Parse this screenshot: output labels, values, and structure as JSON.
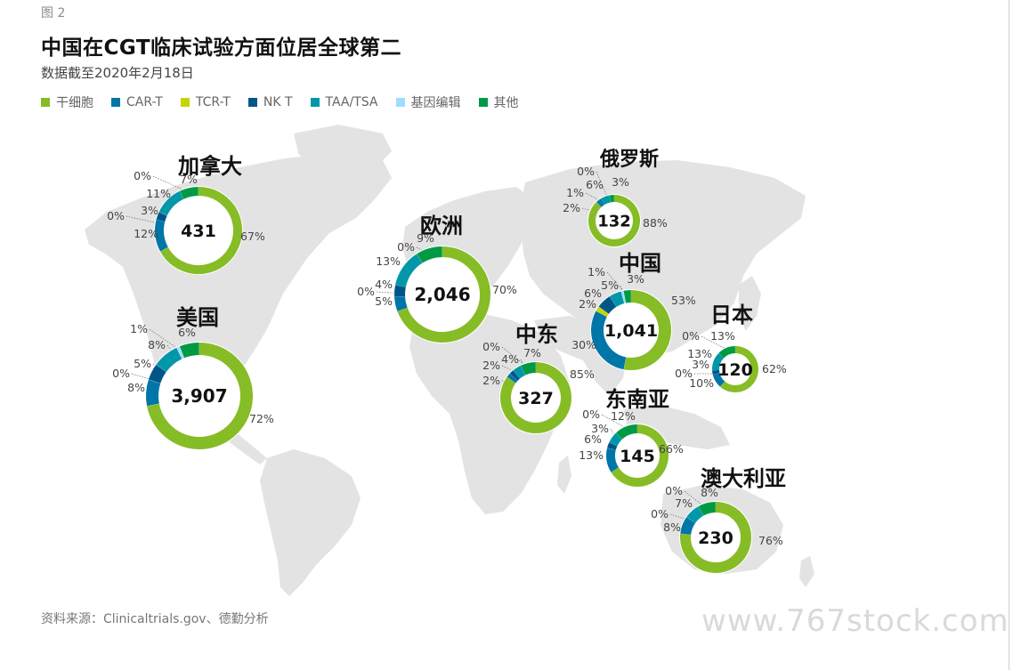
{
  "figure_label": "图 2",
  "title": "中国在CGT临床试验方面位居全球第二",
  "subtitle": "数据截至2020年2月18日",
  "legend": [
    {
      "label": "干细胞",
      "color": "#86bc25"
    },
    {
      "label": "CAR-T",
      "color": "#0076a8"
    },
    {
      "label": "TCR-T",
      "color": "#c4d600"
    },
    {
      "label": "NK T",
      "color": "#005587"
    },
    {
      "label": "TAA/TSA",
      "color": "#0097a9"
    },
    {
      "label": "基因编辑",
      "color": "#a0dcff"
    },
    {
      "label": "其他",
      "color": "#009a44"
    }
  ],
  "source": "资料来源：Clinicaltrials.gov、德勤分析",
  "watermark": "www.767stock.com",
  "chart_data": {
    "type": "pie",
    "variant": "donut-on-map",
    "categories": [
      "干细胞",
      "CAR-T",
      "TCR-T",
      "NK T",
      "TAA/TSA",
      "基因编辑",
      "其他"
    ],
    "regions": [
      {
        "name": "加拿大",
        "total": "431",
        "shares": [
          67,
          12,
          0,
          3,
          11,
          0,
          7
        ],
        "labels": [
          "7%",
          "0%",
          "11%",
          "3%",
          "0%",
          "12%",
          "67%"
        ]
      },
      {
        "name": "美国",
        "total": "3,907",
        "shares": [
          72,
          8,
          0,
          5,
          8,
          1,
          6
        ],
        "labels": [
          "6%",
          "1%",
          "8%",
          "5%",
          "0%",
          "8%",
          "72%"
        ]
      },
      {
        "name": "欧洲",
        "total": "2,046",
        "shares": [
          70,
          5,
          0,
          4,
          13,
          0,
          9
        ],
        "labels": [
          "9%",
          "0%",
          "13%",
          "4%",
          "0%",
          "5%",
          "70%"
        ]
      },
      {
        "name": "俄罗斯",
        "total": "132",
        "shares": [
          88,
          2,
          0,
          1,
          6,
          0,
          3
        ],
        "labels": [
          "3%",
          "0%",
          "6%",
          "1%",
          "2%",
          "88%"
        ]
      },
      {
        "name": "中国",
        "total": "1,041",
        "shares": [
          53,
          30,
          2,
          6,
          5,
          1,
          3
        ],
        "labels": [
          "3%",
          "1%",
          "5%",
          "6%",
          "2%",
          "30%",
          "53%"
        ]
      },
      {
        "name": "中东",
        "total": "327",
        "shares": [
          85,
          2,
          0,
          2,
          4,
          0,
          7
        ],
        "labels": [
          "7%",
          "0%",
          "4%",
          "2%",
          "2%",
          "85%"
        ]
      },
      {
        "name": "日本",
        "total": "120",
        "shares": [
          62,
          10,
          0,
          3,
          13,
          0,
          13
        ],
        "labels": [
          "13%",
          "0%",
          "13%",
          "3%",
          "0%",
          "10%",
          "62%"
        ]
      },
      {
        "name": "东南亚",
        "total": "145",
        "shares": [
          66,
          13,
          0,
          3,
          6,
          0,
          12
        ],
        "labels": [
          "12%",
          "0%",
          "3%",
          "6%",
          "13%",
          "66%"
        ]
      },
      {
        "name": "澳大利亚",
        "total": "230",
        "shares": [
          76,
          8,
          0,
          0,
          7,
          0,
          8
        ],
        "labels": [
          "8%",
          "0%",
          "7%",
          "0%",
          "8%",
          "76%"
        ]
      }
    ]
  }
}
